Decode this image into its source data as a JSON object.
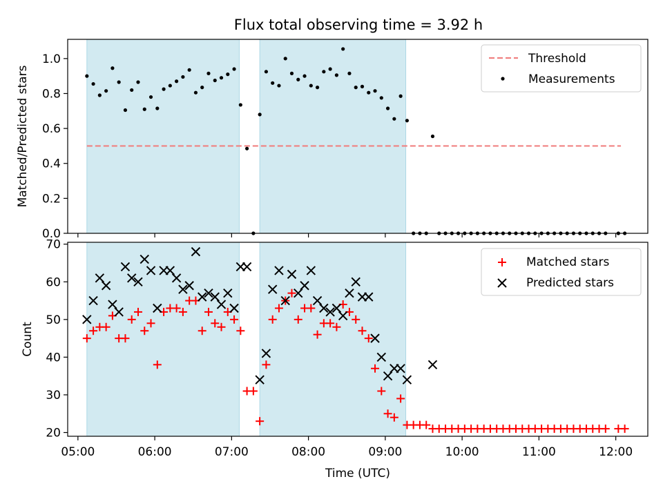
{
  "figure": {
    "title": "Flux total observing time = 3.92 h"
  },
  "x_ticks": [
    "05:00",
    "06:00",
    "07:00",
    "08:00",
    "09:00",
    "10:00",
    "11:00",
    "12:00"
  ],
  "colors": {
    "shade": "#add8e6",
    "threshold": "#f08080",
    "measurement": "#000000",
    "matched": "#ff0000",
    "predicted": "#000000"
  },
  "chart_data": [
    {
      "type": "scatter",
      "title": "Flux total observing time = 3.92 h",
      "xlabel": "",
      "ylabel": "Matched/Predicted stars",
      "ylim": [
        0,
        1.11
      ],
      "xlim": [
        "04:52",
        "12:25"
      ],
      "y_ticks": [
        "0.0",
        "0.2",
        "0.4",
        "0.6",
        "0.8",
        "1.0"
      ],
      "shaded_intervals": [
        [
          "05:07",
          "07:06"
        ],
        [
          "07:22",
          "09:16"
        ]
      ],
      "threshold": {
        "name": "Threshold",
        "value": 0.5,
        "x_range": [
          "05:07",
          "12:04"
        ]
      },
      "series": [
        {
          "name": "Measurements",
          "points": [
            [
              "05:07",
              0.9
            ],
            [
              "05:12",
              0.855
            ],
            [
              "05:17",
              0.79
            ],
            [
              "05:22",
              0.815
            ],
            [
              "05:27",
              0.945
            ],
            [
              "05:32",
              0.865
            ],
            [
              "05:37",
              0.705
            ],
            [
              "05:42",
              0.82
            ],
            [
              "05:47",
              0.865
            ],
            [
              "05:52",
              0.71
            ],
            [
              "05:57",
              0.78
            ],
            [
              "06:02",
              0.715
            ],
            [
              "06:07",
              0.825
            ],
            [
              "06:12",
              0.845
            ],
            [
              "06:17",
              0.87
            ],
            [
              "06:22",
              0.895
            ],
            [
              "06:27",
              0.935
            ],
            [
              "06:32",
              0.805
            ],
            [
              "06:37",
              0.835
            ],
            [
              "06:42",
              0.915
            ],
            [
              "06:47",
              0.875
            ],
            [
              "06:52",
              0.89
            ],
            [
              "06:57",
              0.91
            ],
            [
              "07:02",
              0.94
            ],
            [
              "07:07",
              0.735
            ],
            [
              "07:12",
              0.485
            ],
            [
              "07:17",
              0.0
            ],
            [
              "07:22",
              0.68
            ],
            [
              "07:27",
              0.925
            ],
            [
              "07:32",
              0.86
            ],
            [
              "07:37",
              0.845
            ],
            [
              "07:42",
              1.0
            ],
            [
              "07:47",
              0.915
            ],
            [
              "07:52",
              0.88
            ],
            [
              "07:57",
              0.9
            ],
            [
              "08:02",
              0.845
            ],
            [
              "08:07",
              0.835
            ],
            [
              "08:12",
              0.925
            ],
            [
              "08:17",
              0.94
            ],
            [
              "08:22",
              0.905
            ],
            [
              "08:27",
              1.055
            ],
            [
              "08:32",
              0.915
            ],
            [
              "08:37",
              0.835
            ],
            [
              "08:42",
              0.84
            ],
            [
              "08:47",
              0.805
            ],
            [
              "08:52",
              0.815
            ],
            [
              "08:57",
              0.775
            ],
            [
              "09:02",
              0.715
            ],
            [
              "09:07",
              0.655
            ],
            [
              "09:12",
              0.785
            ],
            [
              "09:17",
              0.645
            ],
            [
              "09:22",
              0.0
            ],
            [
              "09:27",
              0.0
            ],
            [
              "09:32",
              0.0
            ],
            [
              "09:37",
              0.555
            ],
            [
              "09:42",
              0.0
            ],
            [
              "09:47",
              0.0
            ],
            [
              "09:52",
              0.0
            ],
            [
              "09:57",
              0.0
            ],
            [
              "10:02",
              0.0
            ],
            [
              "10:07",
              0.0
            ],
            [
              "10:12",
              0.0
            ],
            [
              "10:17",
              0.0
            ],
            [
              "10:22",
              0.0
            ],
            [
              "10:27",
              0.0
            ],
            [
              "10:32",
              0.0
            ],
            [
              "10:37",
              0.0
            ],
            [
              "10:42",
              0.0
            ],
            [
              "10:47",
              0.0
            ],
            [
              "10:52",
              0.0
            ],
            [
              "10:57",
              0.0
            ],
            [
              "11:02",
              0.0
            ],
            [
              "11:07",
              0.0
            ],
            [
              "11:12",
              0.0
            ],
            [
              "11:17",
              0.0
            ],
            [
              "11:22",
              0.0
            ],
            [
              "11:27",
              0.0
            ],
            [
              "11:32",
              0.0
            ],
            [
              "11:37",
              0.0
            ],
            [
              "11:42",
              0.0
            ],
            [
              "11:47",
              0.0
            ],
            [
              "11:52",
              0.0
            ],
            [
              "12:02",
              0.0
            ],
            [
              "12:07",
              0.0
            ]
          ]
        }
      ],
      "legend": {
        "position": "upper right",
        "entries": [
          "Threshold",
          "Measurements"
        ]
      }
    },
    {
      "type": "scatter",
      "xlabel": "Time (UTC)",
      "ylabel": "Count",
      "ylim": [
        19,
        70.5
      ],
      "xlim": [
        "04:52",
        "12:25"
      ],
      "y_ticks": [
        "20",
        "30",
        "40",
        "50",
        "60",
        "70"
      ],
      "shaded_intervals": [
        [
          "05:07",
          "07:06"
        ],
        [
          "07:22",
          "09:16"
        ]
      ],
      "series": [
        {
          "name": "Matched stars",
          "marker": "+",
          "points": [
            [
              "05:07",
              45
            ],
            [
              "05:12",
              47
            ],
            [
              "05:17",
              48
            ],
            [
              "05:22",
              48
            ],
            [
              "05:27",
              51
            ],
            [
              "05:32",
              45
            ],
            [
              "05:37",
              45
            ],
            [
              "05:42",
              50
            ],
            [
              "05:47",
              52
            ],
            [
              "05:52",
              47
            ],
            [
              "05:57",
              49
            ],
            [
              "06:02",
              38
            ],
            [
              "06:07",
              52
            ],
            [
              "06:12",
              53
            ],
            [
              "06:17",
              53
            ],
            [
              "06:22",
              52
            ],
            [
              "06:27",
              55
            ],
            [
              "06:32",
              55
            ],
            [
              "06:37",
              47
            ],
            [
              "06:42",
              52
            ],
            [
              "06:47",
              49
            ],
            [
              "06:52",
              48
            ],
            [
              "06:57",
              52
            ],
            [
              "07:02",
              50
            ],
            [
              "07:07",
              47
            ],
            [
              "07:12",
              31
            ],
            [
              "07:17",
              31
            ],
            [
              "07:22",
              23
            ],
            [
              "07:27",
              38
            ],
            [
              "07:32",
              50
            ],
            [
              "07:37",
              53
            ],
            [
              "07:42",
              55
            ],
            [
              "07:47",
              57
            ],
            [
              "07:52",
              50
            ],
            [
              "07:57",
              53
            ],
            [
              "08:02",
              53
            ],
            [
              "08:07",
              46
            ],
            [
              "08:12",
              49
            ],
            [
              "08:17",
              49
            ],
            [
              "08:22",
              48
            ],
            [
              "08:27",
              54
            ],
            [
              "08:32",
              52
            ],
            [
              "08:37",
              50
            ],
            [
              "08:42",
              47
            ],
            [
              "08:47",
              45
            ],
            [
              "08:52",
              37
            ],
            [
              "08:57",
              31
            ],
            [
              "09:02",
              25
            ],
            [
              "09:07",
              24
            ],
            [
              "09:12",
              29
            ],
            [
              "09:17",
              22
            ],
            [
              "09:22",
              22
            ],
            [
              "09:27",
              22
            ],
            [
              "09:32",
              22
            ],
            [
              "09:37",
              21
            ],
            [
              "09:42",
              21
            ],
            [
              "09:47",
              21
            ],
            [
              "09:52",
              21
            ],
            [
              "09:57",
              21
            ],
            [
              "10:02",
              21
            ],
            [
              "10:07",
              21
            ],
            [
              "10:12",
              21
            ],
            [
              "10:17",
              21
            ],
            [
              "10:22",
              21
            ],
            [
              "10:27",
              21
            ],
            [
              "10:32",
              21
            ],
            [
              "10:37",
              21
            ],
            [
              "10:42",
              21
            ],
            [
              "10:47",
              21
            ],
            [
              "10:52",
              21
            ],
            [
              "10:57",
              21
            ],
            [
              "11:02",
              21
            ],
            [
              "11:07",
              21
            ],
            [
              "11:12",
              21
            ],
            [
              "11:17",
              21
            ],
            [
              "11:22",
              21
            ],
            [
              "11:27",
              21
            ],
            [
              "11:32",
              21
            ],
            [
              "11:37",
              21
            ],
            [
              "11:42",
              21
            ],
            [
              "11:47",
              21
            ],
            [
              "11:52",
              21
            ],
            [
              "12:02",
              21
            ],
            [
              "12:07",
              21
            ]
          ]
        },
        {
          "name": "Predicted stars",
          "marker": "x",
          "points": [
            [
              "05:07",
              50
            ],
            [
              "05:12",
              55
            ],
            [
              "05:17",
              61
            ],
            [
              "05:22",
              59
            ],
            [
              "05:27",
              54
            ],
            [
              "05:32",
              52
            ],
            [
              "05:37",
              64
            ],
            [
              "05:42",
              61
            ],
            [
              "05:47",
              60
            ],
            [
              "05:52",
              66
            ],
            [
              "05:57",
              63
            ],
            [
              "06:02",
              53
            ],
            [
              "06:07",
              63
            ],
            [
              "06:12",
              63
            ],
            [
              "06:17",
              61
            ],
            [
              "06:22",
              58
            ],
            [
              "06:27",
              59
            ],
            [
              "06:32",
              68
            ],
            [
              "06:37",
              56
            ],
            [
              "06:42",
              57
            ],
            [
              "06:47",
              56
            ],
            [
              "06:52",
              54
            ],
            [
              "06:57",
              57
            ],
            [
              "07:02",
              53
            ],
            [
              "07:07",
              64
            ],
            [
              "07:12",
              64
            ],
            [
              "07:22",
              34
            ],
            [
              "07:27",
              41
            ],
            [
              "07:32",
              58
            ],
            [
              "07:37",
              63
            ],
            [
              "07:42",
              55
            ],
            [
              "07:47",
              62
            ],
            [
              "07:52",
              57
            ],
            [
              "07:57",
              59
            ],
            [
              "08:02",
              63
            ],
            [
              "08:07",
              55
            ],
            [
              "08:12",
              53
            ],
            [
              "08:17",
              52
            ],
            [
              "08:22",
              53
            ],
            [
              "08:27",
              51
            ],
            [
              "08:32",
              57
            ],
            [
              "08:37",
              60
            ],
            [
              "08:42",
              56
            ],
            [
              "08:47",
              56
            ],
            [
              "08:52",
              45
            ],
            [
              "08:57",
              40
            ],
            [
              "09:02",
              35
            ],
            [
              "09:07",
              37
            ],
            [
              "09:12",
              37
            ],
            [
              "09:17",
              34
            ],
            [
              "09:37",
              38
            ]
          ]
        }
      ],
      "legend": {
        "position": "upper right",
        "entries": [
          "Matched stars",
          "Predicted stars"
        ]
      }
    }
  ]
}
